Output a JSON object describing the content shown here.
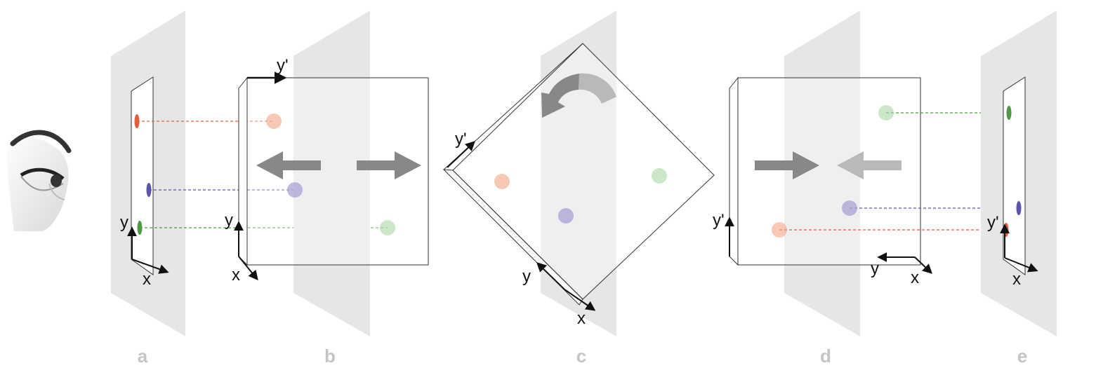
{
  "panel_labels": [
    "a",
    "b",
    "c",
    "d",
    "e"
  ],
  "axis_labels": {
    "x": "x",
    "y": "y",
    "y_prime": "y'"
  },
  "colors": {
    "plane": "#e6e6e6",
    "label": "#c4c4c4",
    "arrow": "#888888",
    "arrow_light": "#b9b9b9",
    "orange": "#f0a384",
    "orange_dark": "#e0603c",
    "purple": "#a8a3d4",
    "purple_dark": "#5a55a8",
    "green": "#a9d6a3",
    "green_dark": "#4c9a44"
  },
  "icons": {
    "viewer": "eye-icon",
    "rotation": "rotate-counterclockwise-icon",
    "translation": "arrow-icon"
  }
}
